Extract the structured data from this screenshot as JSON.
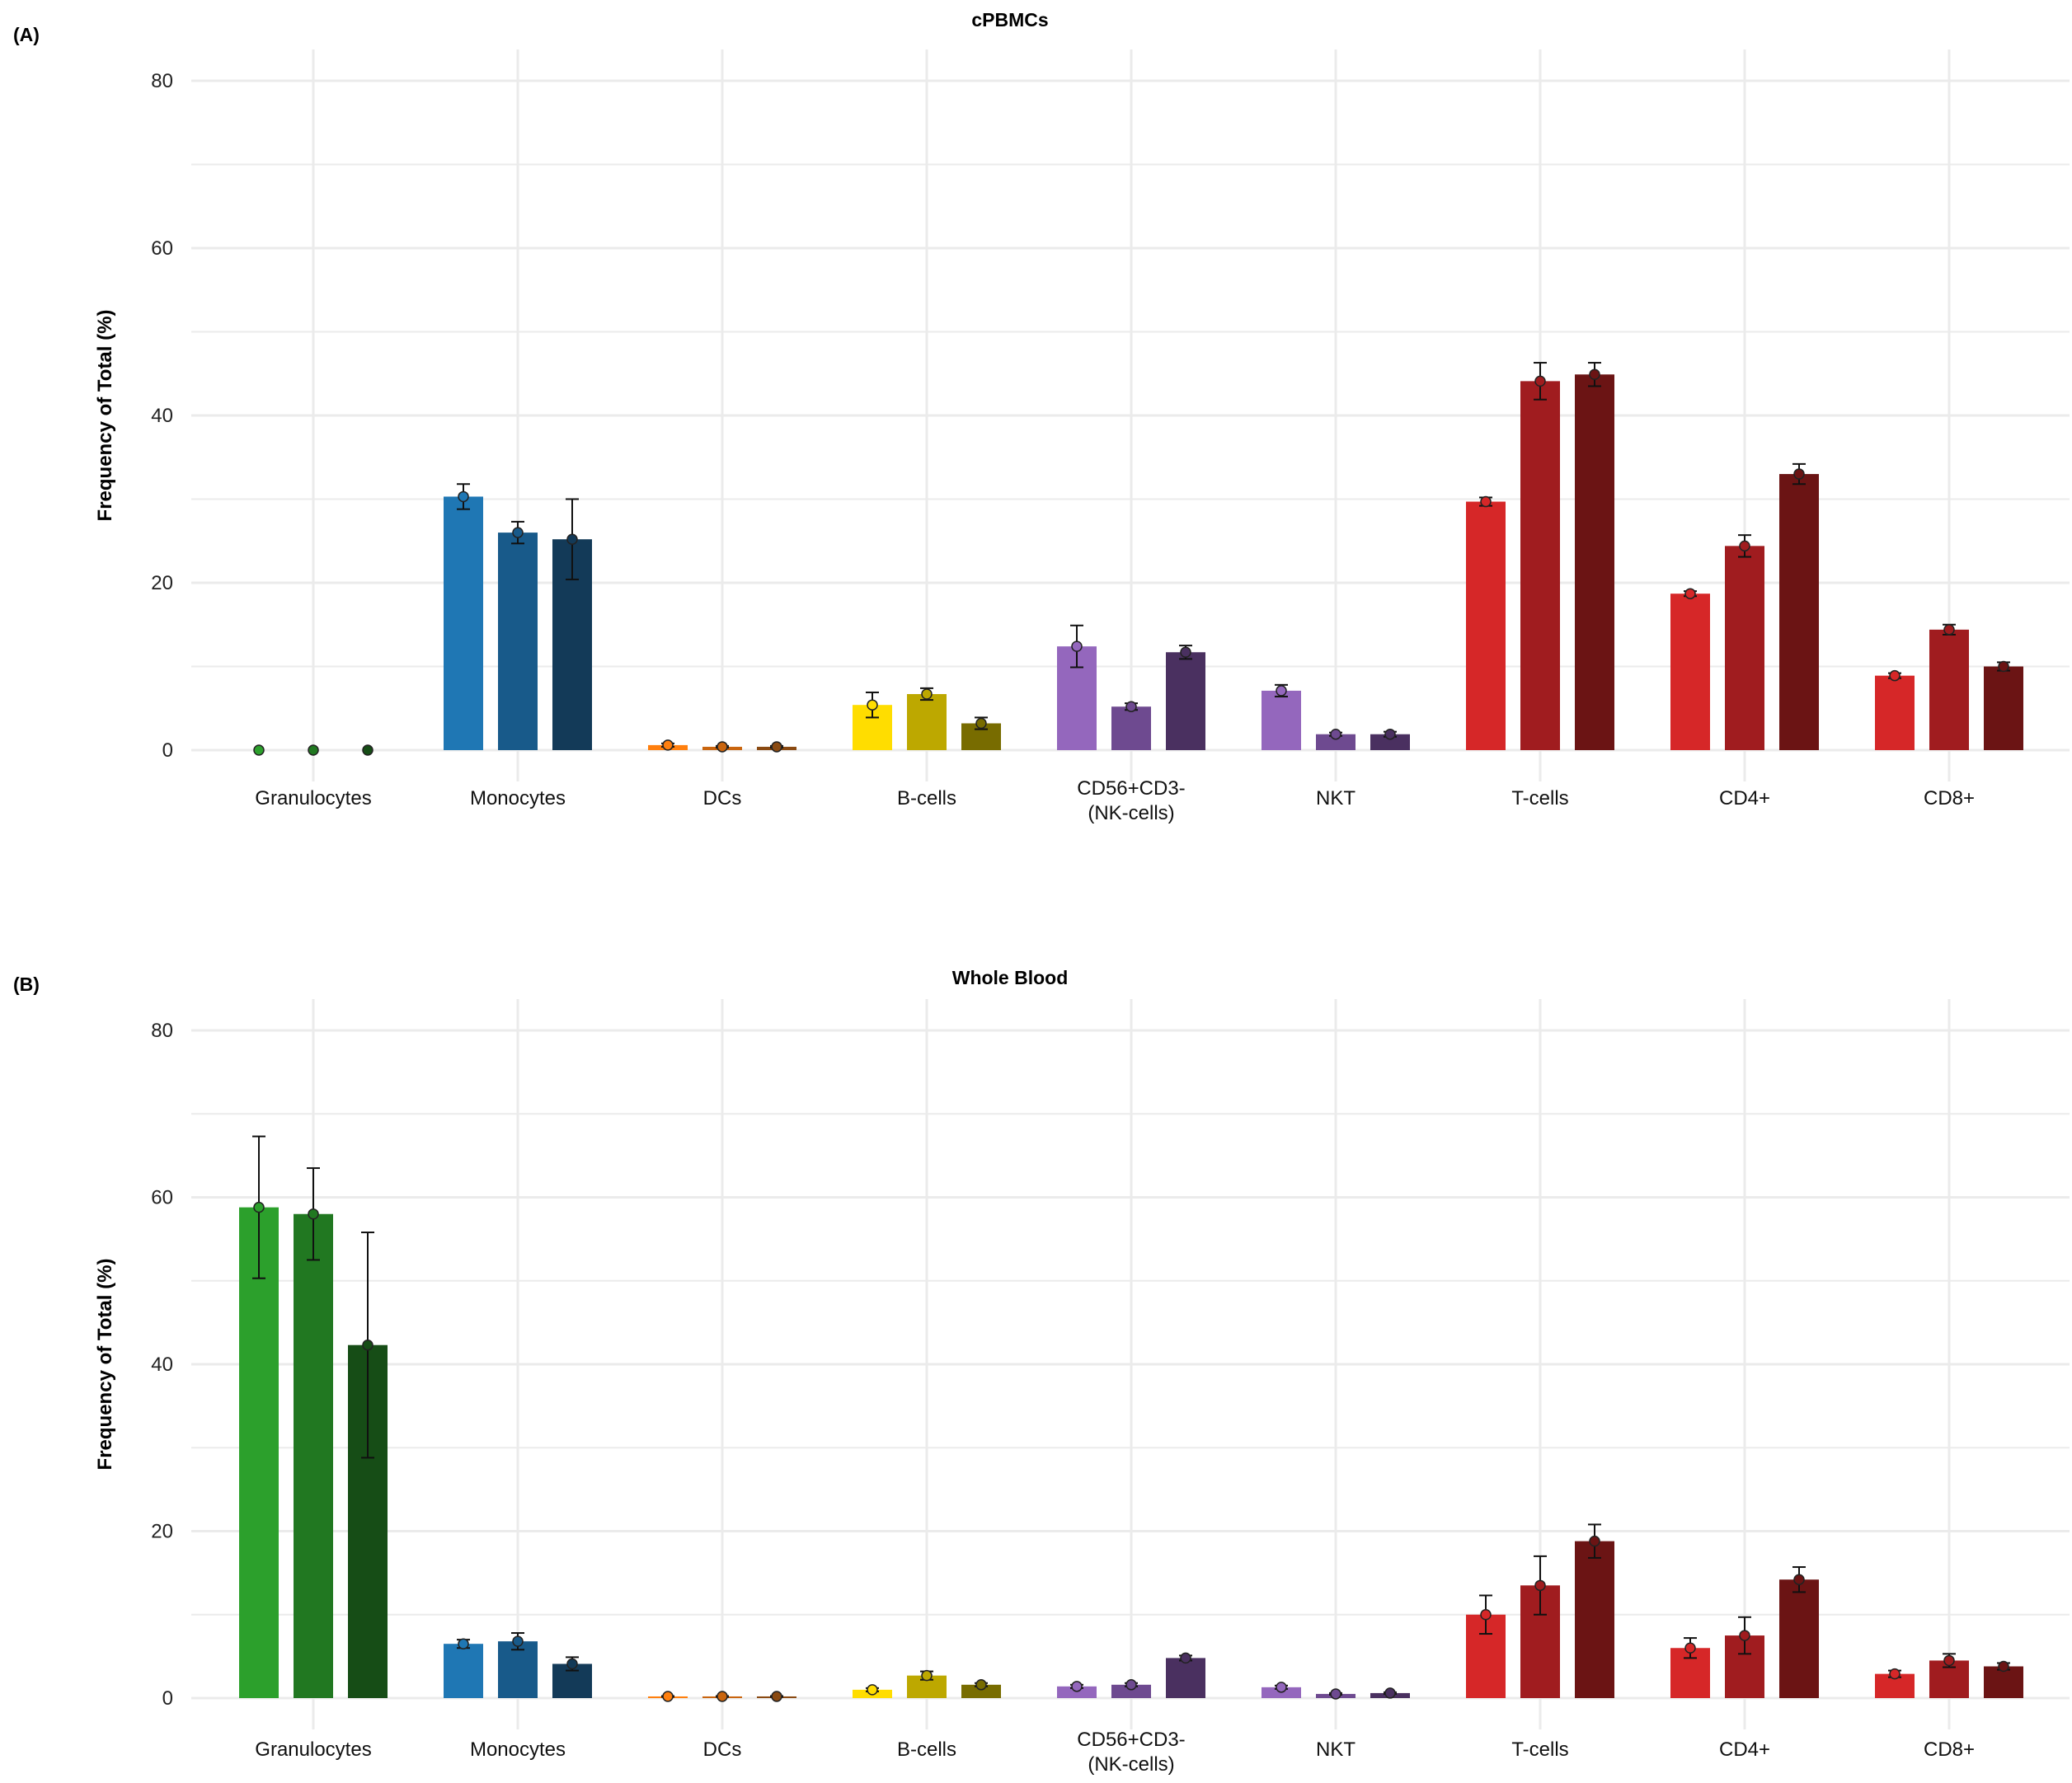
{
  "chart_data": [
    {
      "type": "bar",
      "panel_label": "(A)",
      "title": "cPBMCs",
      "ylabel": "Frequency of Total (%)",
      "xlabel": "",
      "ylim": [
        0,
        80
      ],
      "yticks": [
        0,
        20,
        40,
        60,
        80
      ],
      "grid": true,
      "categories": [
        "Granulocytes",
        "Monocytes",
        "DCs",
        "B-cells",
        "CD56+CD3-\n(NK-cells)",
        "NKT",
        "T-cells",
        "CD4+",
        "CD8+"
      ],
      "series": [
        {
          "values": [
            0.0,
            30.3,
            0.6,
            5.4,
            12.4,
            7.1,
            29.7,
            18.7,
            8.9
          ],
          "sd": [
            0,
            1.5,
            0.2,
            1.5,
            2.5,
            0.7,
            0.5,
            0.3,
            0.3
          ]
        },
        {
          "values": [
            0.0,
            26.0,
            0.4,
            6.7,
            5.2,
            1.9,
            44.1,
            24.4,
            14.4
          ],
          "sd": [
            0,
            1.3,
            0.1,
            0.7,
            0.4,
            0.2,
            2.2,
            1.3,
            0.6
          ]
        },
        {
          "values": [
            0.0,
            25.2,
            0.4,
            3.2,
            11.7,
            1.9,
            44.9,
            33.0,
            10.0
          ],
          "sd": [
            0,
            4.8,
            0.1,
            0.7,
            0.8,
            0.3,
            1.4,
            1.2,
            0.5
          ]
        }
      ],
      "colors": [
        [
          "#2ca02c",
          "#217821",
          "#164d16"
        ],
        [
          "#1f77b4",
          "#185a8a",
          "#133a58"
        ],
        [
          "#ff7f0e",
          "#c9650f",
          "#8a4a12"
        ],
        [
          "#ffdd00",
          "#bda800",
          "#786c00"
        ],
        [
          "#9467bd",
          "#6e4a90",
          "#4a3060"
        ],
        [
          "#9467bd",
          "#6e4a90",
          "#4a3060"
        ],
        [
          "#d62728",
          "#a01c1f",
          "#6b1414"
        ],
        [
          "#d62728",
          "#a01c1f",
          "#6b1414"
        ],
        [
          "#d62728",
          "#a01c1f",
          "#6b1414"
        ]
      ]
    },
    {
      "type": "bar",
      "panel_label": "(B)",
      "title": "Whole Blood",
      "ylabel": "Frequency of Total (%)",
      "xlabel": "",
      "ylim": [
        0,
        80
      ],
      "yticks": [
        0,
        20,
        40,
        60,
        80
      ],
      "grid": true,
      "categories": [
        "Granulocytes",
        "Monocytes",
        "DCs",
        "B-cells",
        "CD56+CD3-\n(NK-cells)",
        "NKT",
        "T-cells",
        "CD4+",
        "CD8+"
      ],
      "series": [
        {
          "values": [
            58.8,
            6.5,
            0.2,
            1.0,
            1.4,
            1.3,
            10.0,
            6.0,
            2.9
          ],
          "sd": [
            8.5,
            0.5,
            0.05,
            0.2,
            0.2,
            0.2,
            2.3,
            1.2,
            0.4
          ]
        },
        {
          "values": [
            58.0,
            6.8,
            0.2,
            2.7,
            1.6,
            0.5,
            13.5,
            7.5,
            4.5
          ],
          "sd": [
            5.5,
            1.0,
            0.05,
            0.5,
            0.2,
            0.1,
            3.5,
            2.2,
            0.8
          ]
        },
        {
          "values": [
            42.3,
            4.1,
            0.2,
            1.6,
            4.8,
            0.6,
            18.8,
            14.2,
            3.8
          ],
          "sd": [
            13.5,
            0.8,
            0.05,
            0.2,
            0.3,
            0.1,
            2.0,
            1.5,
            0.4
          ]
        }
      ],
      "colors": [
        [
          "#2ca02c",
          "#217821",
          "#164d16"
        ],
        [
          "#1f77b4",
          "#185a8a",
          "#133a58"
        ],
        [
          "#ff7f0e",
          "#c9650f",
          "#8a4a12"
        ],
        [
          "#ffdd00",
          "#bda800",
          "#786c00"
        ],
        [
          "#9467bd",
          "#6e4a90",
          "#4a3060"
        ],
        [
          "#9467bd",
          "#6e4a90",
          "#4a3060"
        ],
        [
          "#d62728",
          "#a01c1f",
          "#6b1414"
        ],
        [
          "#d62728",
          "#a01c1f",
          "#6b1414"
        ],
        [
          "#d62728",
          "#a01c1f",
          "#6b1414"
        ]
      ]
    }
  ]
}
